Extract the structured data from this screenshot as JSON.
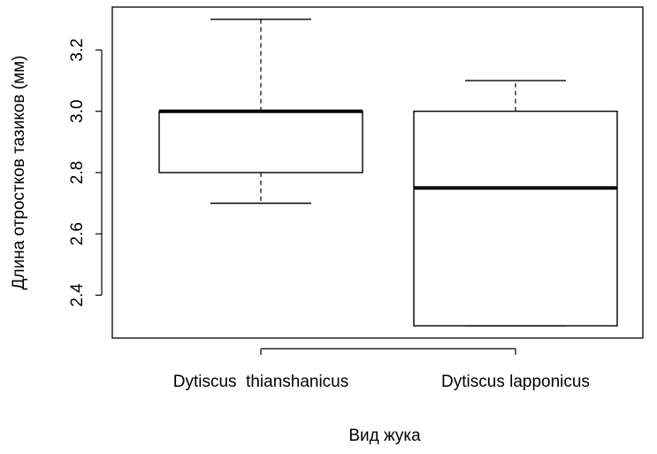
{
  "chart_data": {
    "type": "boxplot",
    "xlabel": "Вид жука",
    "ylabel": "Длина отростков тазиков (мм)",
    "categories": [
      "Dytiscus  thianshanicus",
      "Dytiscus lapponicus"
    ],
    "boxes": [
      {
        "min": 2.7,
        "q1": 2.8,
        "median": 3.0,
        "q3": 3.0,
        "max": 3.3
      },
      {
        "min": 2.3,
        "q1": 2.3,
        "median": 2.75,
        "q3": 3.0,
        "max": 3.1
      }
    ],
    "color": "#000000",
    "ylim": [
      2.26,
      3.34
    ],
    "yticks": [
      {
        "value": 2.4,
        "label": "2.4"
      },
      {
        "value": 2.6,
        "label": "2.6"
      },
      {
        "value": 2.8,
        "label": "2.8"
      },
      {
        "value": 3.0,
        "label": "3.0"
      },
      {
        "value": 3.2,
        "label": "3.2"
      }
    ],
    "grid": false
  }
}
